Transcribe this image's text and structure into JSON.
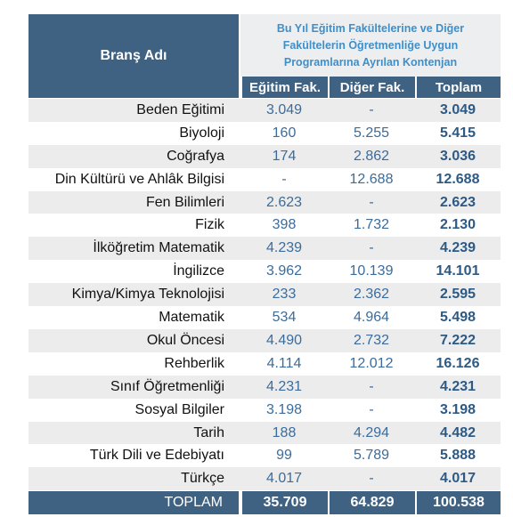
{
  "header": {
    "title": "Branş Adı",
    "group": [
      "Bu Yıl Eğitim Fakültelerine ve Diğer",
      "Fakültelerin Öğretmenliğe Uygun",
      "Programlarına Ayrılan Kontenjan"
    ],
    "columns": [
      "Eğitim Fak.",
      "Diğer Fak.",
      "Toplam"
    ]
  },
  "table": {
    "rows": [
      [
        "Beden Eğitimi",
        "3.049",
        "-",
        "3.049"
      ],
      [
        "Biyoloji",
        "160",
        "5.255",
        "5.415"
      ],
      [
        "Coğrafya",
        "174",
        "2.862",
        "3.036"
      ],
      [
        "Din Kültürü ve Ahlâk Bilgisi",
        "-",
        "12.688",
        "12.688"
      ],
      [
        "Fen Bilimleri",
        "2.623",
        "-",
        "2.623"
      ],
      [
        "Fizik",
        "398",
        "1.732",
        "2.130"
      ],
      [
        "İlköğretim Matematik",
        "4.239",
        "-",
        "4.239"
      ],
      [
        "İngilizce",
        "3.962",
        "10.139",
        "14.101"
      ],
      [
        "Kimya/Kimya Teknolojisi",
        "233",
        "2.362",
        "2.595"
      ],
      [
        "Matematik",
        "534",
        "4.964",
        "5.498"
      ],
      [
        "Okul Öncesi",
        "4.490",
        "2.732",
        "7.222"
      ],
      [
        "Rehberlik",
        "4.114",
        "12.012",
        "16.126"
      ],
      [
        "Sınıf Öğretmenliği",
        "4.231",
        "-",
        "4.231"
      ],
      [
        "Sosyal Bilgiler",
        "3.198",
        "-",
        "3.198"
      ],
      [
        "Tarih",
        "188",
        "4.294",
        "4.482"
      ],
      [
        "Türk Dili ve Edebiyatı",
        "99",
        "5.789",
        "5.888"
      ],
      [
        "Türkçe",
        "4.017",
        "-",
        "4.017"
      ]
    ],
    "total": [
      "TOPLAM",
      "35.709",
      "64.829",
      "100.538"
    ]
  }
}
